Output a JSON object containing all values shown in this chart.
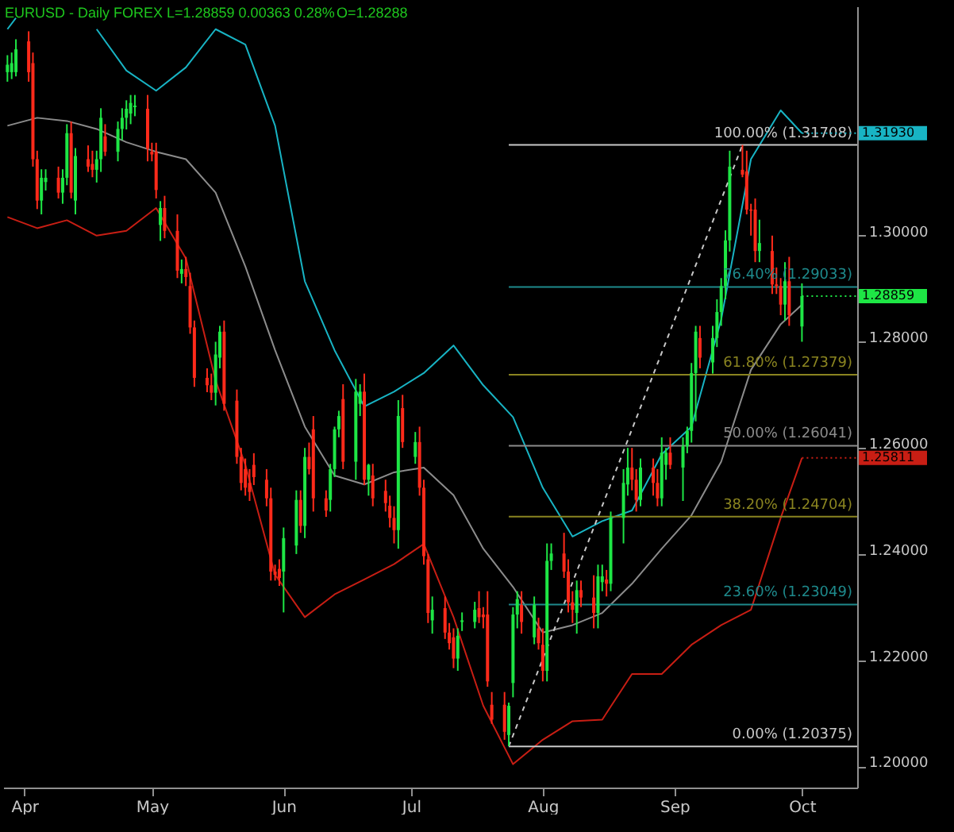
{
  "chart_data": {
    "type": "candlestick",
    "title": "EURUSD - Daily FOREX L=1.28859 0.00363 0.28%",
    "subtitle": "O=1.28288",
    "x": [
      "--03-28",
      "--03-29",
      "--03-30",
      "--04-02",
      "--04-03",
      "--04-04",
      "--04-05",
      "--04-06",
      "--04-09",
      "--04-10",
      "--04-11",
      "--04-12",
      "--04-13",
      "--04-16",
      "--04-17",
      "--04-18",
      "--04-19",
      "--04-20",
      "--04-23",
      "--04-24",
      "--04-25",
      "--04-26",
      "--04-27",
      "--04-30",
      "--05-01",
      "--05-02",
      "--05-03",
      "--05-04",
      "--05-07",
      "--05-08",
      "--05-09",
      "--05-10",
      "--05-11",
      "--05-14",
      "--05-15",
      "--05-16",
      "--05-17",
      "--05-18",
      "--05-21",
      "--05-22",
      "--05-23",
      "--05-24",
      "--05-25",
      "--05-28",
      "--05-29",
      "--05-30",
      "--05-31",
      "--06-01",
      "--06-04",
      "--06-05",
      "--06-06",
      "--06-07",
      "--06-08",
      "--06-11",
      "--06-12",
      "--06-13",
      "--06-14",
      "--06-15",
      "--06-18",
      "--06-19",
      "--06-20",
      "--06-21",
      "--06-22",
      "--06-25",
      "--06-26",
      "--06-27",
      "--06-28",
      "--06-29",
      "--07-02",
      "--07-03",
      "--07-04",
      "--07-05",
      "--07-06",
      "--07-09",
      "--07-10",
      "--07-11",
      "--07-12",
      "--07-13",
      "--07-16",
      "--07-17",
      "--07-18",
      "--07-19",
      "--07-20",
      "--07-23",
      "--07-24",
      "--07-25",
      "--07-26",
      "--07-27",
      "--07-30",
      "--07-31",
      "--08-01",
      "--08-02",
      "--08-03",
      "--08-06",
      "--08-07",
      "--08-08",
      "--08-09",
      "--08-10",
      "--08-13",
      "--08-14",
      "--08-15",
      "--08-16",
      "--08-17",
      "--08-20",
      "--08-21",
      "--08-22",
      "--08-23",
      "--08-24",
      "--08-27",
      "--08-28",
      "--08-29",
      "--08-30",
      "--08-31",
      "--09-03",
      "--09-04",
      "--09-05",
      "--09-06",
      "--09-07",
      "--09-10",
      "--09-11",
      "--09-12",
      "--09-13",
      "--09-14",
      "--09-17",
      "--09-18",
      "--09-19",
      "--09-20",
      "--09-21",
      "--09-24",
      "--09-25",
      "--09-26",
      "--09-27",
      "--09-28",
      "--10-01"
    ],
    "ohlc": [
      [
        1.3308,
        1.334,
        1.329,
        1.3322
      ],
      [
        1.3308,
        1.3345,
        1.3295,
        1.3325
      ],
      [
        1.3308,
        1.337,
        1.33,
        1.3351
      ],
      [
        1.3366,
        1.3385,
        1.329,
        1.3308
      ],
      [
        1.3325,
        1.3345,
        1.313,
        1.3144
      ],
      [
        1.3144,
        1.316,
        1.305,
        1.3066
      ],
      [
        1.3066,
        1.3125,
        1.304,
        1.3109
      ],
      [
        1.3101,
        1.3125,
        1.3085,
        1.3109
      ],
      [
        1.3109,
        1.313,
        1.307,
        1.3081
      ],
      [
        1.3081,
        1.3125,
        1.306,
        1.3109
      ],
      [
        1.3109,
        1.321,
        1.3095,
        1.3193
      ],
      [
        1.3193,
        1.3215,
        1.307,
        1.3081
      ],
      [
        1.3066,
        1.3165,
        1.304,
        1.315
      ],
      [
        1.3144,
        1.317,
        1.312,
        1.313
      ],
      [
        1.3135,
        1.316,
        1.311,
        1.3124
      ],
      [
        1.3124,
        1.316,
        1.31,
        1.3144
      ],
      [
        1.3144,
        1.324,
        1.312,
        1.3222
      ],
      [
        1.3187,
        1.321,
        1.315,
        1.3158
      ],
      [
        1.3158,
        1.3215,
        1.314,
        1.3201
      ],
      [
        1.3201,
        1.324,
        1.318,
        1.3222
      ],
      [
        1.3222,
        1.3255,
        1.32,
        1.3239
      ],
      [
        1.323,
        1.3265,
        1.321,
        1.325
      ],
      [
        1.3242,
        1.3265,
        1.3225,
        1.3245
      ],
      [
        1.3239,
        1.3265,
        1.314,
        1.3164
      ],
      [
        1.3158,
        1.3175,
        1.314,
        1.3153
      ],
      [
        1.3158,
        1.3175,
        1.307,
        1.3086
      ],
      [
        1.302,
        1.3065,
        1.299,
        1.3052
      ],
      [
        1.3052,
        1.3075,
        1.2995,
        1.3009
      ],
      [
        1.3009,
        1.304,
        1.292,
        1.2934
      ],
      [
        1.2928,
        1.2955,
        1.291,
        1.2937
      ],
      [
        1.2937,
        1.296,
        1.2905,
        1.2922
      ],
      [
        1.2905,
        1.293,
        1.2815,
        1.2827
      ],
      [
        1.2827,
        1.284,
        1.2715,
        1.2732
      ],
      [
        1.2732,
        1.275,
        1.2705,
        1.2718
      ],
      [
        1.2718,
        1.274,
        1.269,
        1.2704
      ],
      [
        1.2704,
        1.28,
        1.268,
        1.2776
      ],
      [
        1.277,
        1.283,
        1.275,
        1.2819
      ],
      [
        1.2819,
        1.284,
        1.267,
        1.2683
      ],
      [
        1.2689,
        1.271,
        1.257,
        1.2583
      ],
      [
        1.2583,
        1.26,
        1.252,
        1.2534
      ],
      [
        1.256,
        1.258,
        1.251,
        1.2525
      ],
      [
        1.2534,
        1.256,
        1.25,
        1.2517
      ],
      [
        1.2568,
        1.259,
        1.253,
        1.2545
      ],
      [
        1.254,
        1.256,
        1.249,
        1.2505
      ],
      [
        1.2505,
        1.2525,
        1.235,
        1.2367
      ],
      [
        1.2367,
        1.238,
        1.235,
        1.2361
      ],
      [
        1.2372,
        1.239,
        1.234,
        1.2355
      ],
      [
        1.2367,
        1.245,
        1.229,
        1.243
      ],
      [
        1.2416,
        1.252,
        1.24,
        1.2502
      ],
      [
        1.2502,
        1.252,
        1.244,
        1.2453
      ],
      [
        1.2453,
        1.26,
        1.243,
        1.2583
      ],
      [
        1.2583,
        1.261,
        1.255,
        1.256
      ],
      [
        1.2635,
        1.266,
        1.248,
        1.2505
      ],
      [
        1.2505,
        1.252,
        1.247,
        1.2482
      ],
      [
        1.2502,
        1.257,
        1.248,
        1.256
      ],
      [
        1.256,
        1.264,
        1.2545,
        1.2635
      ],
      [
        1.2635,
        1.267,
        1.262,
        1.266
      ],
      [
        1.2692,
        1.272,
        1.256,
        1.2574
      ],
      [
        1.2574,
        1.273,
        1.254,
        1.2706
      ],
      [
        1.2683,
        1.272,
        1.266,
        1.2706
      ],
      [
        1.2706,
        1.274,
        1.253,
        1.254
      ],
      [
        1.254,
        1.257,
        1.251,
        1.2568
      ],
      [
        1.2548,
        1.257,
        1.249,
        1.2505
      ],
      [
        1.2519,
        1.254,
        1.248,
        1.2496
      ],
      [
        1.2491,
        1.251,
        1.245,
        1.2468
      ],
      [
        1.2468,
        1.249,
        1.242,
        1.2445
      ],
      [
        1.2445,
        1.269,
        1.241,
        1.266
      ],
      [
        1.2675,
        1.27,
        1.26,
        1.2611
      ],
      [
        1.2583,
        1.263,
        1.257,
        1.2611
      ],
      [
        1.2611,
        1.264,
        1.251,
        1.2525
      ],
      [
        1.2525,
        1.254,
        1.238,
        1.2396
      ],
      [
        1.239,
        1.24,
        1.227,
        1.2289
      ],
      [
        1.2275,
        1.232,
        1.225,
        1.2295
      ],
      [
        1.2298,
        1.232,
        1.224,
        1.2252
      ],
      [
        1.2252,
        1.227,
        1.222,
        1.2232
      ],
      [
        1.2243,
        1.226,
        1.2185,
        1.2203
      ],
      [
        1.2203,
        1.226,
        1.218,
        1.2246
      ],
      [
        1.2272,
        1.229,
        1.2255,
        1.2275
      ],
      [
        1.2272,
        1.231,
        1.226,
        1.2295
      ],
      [
        1.2298,
        1.233,
        1.227,
        1.2281
      ],
      [
        1.2286,
        1.23,
        1.226,
        1.2281
      ],
      [
        1.2286,
        1.233,
        1.215,
        1.216
      ],
      [
        1.2116,
        1.214,
        1.208,
        1.2088
      ],
      [
        1.2116,
        1.214,
        1.205,
        1.2065
      ],
      [
        1.2059,
        1.212,
        1.2038,
        1.2114
      ],
      [
        1.2157,
        1.23,
        1.213,
        1.2286
      ],
      [
        1.2286,
        1.233,
        1.226,
        1.2315
      ],
      [
        1.2304,
        1.233,
        1.225,
        1.2272
      ],
      [
        1.2243,
        1.232,
        1.223,
        1.2304
      ],
      [
        1.226,
        1.228,
        1.222,
        1.2232
      ],
      [
        1.2229,
        1.226,
        1.216,
        1.218
      ],
      [
        1.218,
        1.242,
        1.216,
        1.2387
      ],
      [
        1.2387,
        1.242,
        1.237,
        1.2401
      ],
      [
        1.2401,
        1.244,
        1.2355,
        1.2367
      ],
      [
        1.2367,
        1.239,
        1.229,
        1.2309
      ],
      [
        1.2309,
        1.233,
        1.227,
        1.2295
      ],
      [
        1.2289,
        1.235,
        1.225,
        1.2332
      ],
      [
        1.2332,
        1.235,
        1.23,
        1.2318
      ],
      [
        1.2318,
        1.236,
        1.226,
        1.2289
      ],
      [
        1.2289,
        1.238,
        1.226,
        1.2358
      ],
      [
        1.2347,
        1.238,
        1.233,
        1.2358
      ],
      [
        1.2352,
        1.237,
        1.232,
        1.2344
      ],
      [
        1.2344,
        1.248,
        1.233,
        1.2468
      ],
      [
        1.2468,
        1.256,
        1.242,
        1.2534
      ],
      [
        1.2531,
        1.26,
        1.251,
        1.2563
      ],
      [
        1.2563,
        1.26,
        1.252,
        1.254
      ],
      [
        1.254,
        1.256,
        1.248,
        1.2502
      ],
      [
        1.2502,
        1.258,
        1.249,
        1.2563
      ],
      [
        1.2563,
        1.258,
        1.251,
        1.2534
      ],
      [
        1.2534,
        1.256,
        1.249,
        1.2505
      ],
      [
        1.2505,
        1.262,
        1.249,
        1.2591
      ],
      [
        1.2568,
        1.26,
        1.254,
        1.2591
      ],
      [
        1.2591,
        1.262,
        1.256,
        1.2568
      ],
      [
        1.2563,
        1.262,
        1.25,
        1.2603
      ],
      [
        1.2603,
        1.264,
        1.259,
        1.2632
      ],
      [
        1.2632,
        1.276,
        1.261,
        1.2741
      ],
      [
        1.2741,
        1.283,
        1.265,
        1.2819
      ],
      [
        1.2807,
        1.283,
        1.275,
        1.277
      ],
      [
        1.2761,
        1.283,
        1.274,
        1.2807
      ],
      [
        1.2807,
        1.288,
        1.279,
        1.2856
      ],
      [
        1.2856,
        1.292,
        1.283,
        1.2905
      ],
      [
        1.2905,
        1.301,
        1.288,
        1.2991
      ],
      [
        1.2991,
        1.316,
        1.297,
        1.313
      ],
      [
        1.3124,
        1.31708,
        1.311,
        1.3115
      ],
      [
        1.3121,
        1.316,
        1.304,
        1.3049
      ],
      [
        1.3049,
        1.306,
        1.3,
        1.3047
      ],
      [
        1.3049,
        1.307,
        1.295,
        1.2971
      ],
      [
        1.2971,
        1.303,
        1.295,
        1.2986
      ],
      [
        1.2971,
        1.3,
        1.289,
        1.2908
      ],
      [
        1.2908,
        1.294,
        1.289,
        1.2905
      ],
      [
        1.2905,
        1.292,
        1.285,
        1.287
      ],
      [
        1.287,
        1.295,
        1.284,
        1.2914
      ],
      [
        1.2914,
        1.296,
        1.283,
        1.285
      ],
      [
        1.28288,
        1.291,
        1.28,
        1.28859
      ]
    ],
    "colors": [
      "#1ee645",
      "#1ee645",
      "#1ee645",
      "#ff2a1a",
      "#ff2a1a",
      "#ff2a1a",
      "#1ee645",
      "#1ee645",
      "#ff2a1a",
      "#1ee645",
      "#1ee645",
      "#ff2a1a",
      "#1ee645",
      "#ff2a1a",
      "#ff2a1a",
      "#1ee645",
      "#1ee645",
      "#ff2a1a",
      "#1ee645",
      "#1ee645",
      "#1ee645",
      "#1ee645",
      "#1ee645",
      "#ff2a1a",
      "#ff2a1a",
      "#ff2a1a",
      "#1ee645",
      "#ff2a1a",
      "#ff2a1a",
      "#1ee645",
      "#ff2a1a",
      "#ff2a1a",
      "#ff2a1a",
      "#ff2a1a",
      "#ff2a1a",
      "#1ee645",
      "#1ee645",
      "#ff2a1a",
      "#ff2a1a",
      "#ff2a1a",
      "#ff2a1a",
      "#ff2a1a",
      "#ff2a1a",
      "#ff2a1a",
      "#ff2a1a",
      "#ff2a1a",
      "#ff2a1a",
      "#1ee645",
      "#1ee645",
      "#ff2a1a",
      "#1ee645",
      "#ff2a1a",
      "#ff2a1a",
      "#ff2a1a",
      "#1ee645",
      "#1ee645",
      "#1ee645",
      "#ff2a1a",
      "#1ee645",
      "#1ee645",
      "#ff2a1a",
      "#1ee645",
      "#ff2a1a",
      "#ff2a1a",
      "#ff2a1a",
      "#ff2a1a",
      "#1ee645",
      "#ff2a1a",
      "#1ee645",
      "#ff2a1a",
      "#ff2a1a",
      "#ff2a1a",
      "#1ee645",
      "#ff2a1a",
      "#ff2a1a",
      "#ff2a1a",
      "#1ee645",
      "#1ee645",
      "#1ee645",
      "#ff2a1a",
      "#ff2a1a",
      "#ff2a1a",
      "#ff2a1a",
      "#ff2a1a",
      "#1ee645",
      "#1ee645",
      "#1ee645",
      "#ff2a1a",
      "#1ee645",
      "#ff2a1a",
      "#ff2a1a",
      "#1ee645",
      "#1ee645",
      "#ff2a1a",
      "#ff2a1a",
      "#ff2a1a",
      "#1ee645",
      "#ff2a1a",
      "#ff2a1a",
      "#1ee645",
      "#1ee645",
      "#ff2a1a",
      "#1ee645",
      "#1ee645",
      "#1ee645",
      "#ff2a1a",
      "#ff2a1a",
      "#1ee645",
      "#ff2a1a",
      "#ff2a1a",
      "#1ee645",
      "#1ee645",
      "#ff2a1a",
      "#1ee645",
      "#1ee645",
      "#1ee645",
      "#1ee645",
      "#ff2a1a",
      "#1ee645",
      "#1ee645",
      "#1ee645",
      "#1ee645",
      "#1ee645",
      "#ff2a1a",
      "#ff2a1a",
      "#ff2a1a",
      "#ff2a1a",
      "#1ee645",
      "#ff2a1a",
      "#ff2a1a",
      "#ff2a1a",
      "#1ee645",
      "#ff2a1a",
      "#1ee645"
    ],
    "series": [
      {
        "type": "line",
        "color": "#18b4c4",
        "x": [
          "--03-28",
          "--03-30",
          "--04-04",
          "--04-11",
          "--04-18",
          "--04-25",
          "--05-02",
          "--05-09",
          "--05-16",
          "--05-23",
          "--05-30",
          "--06-06",
          "--06-13",
          "--06-20",
          "--06-27",
          "--07-04",
          "--07-11",
          "--07-18",
          "--07-25",
          "--08-01",
          "--08-08",
          "--08-15",
          "--08-22",
          "--08-29",
          "--09-05",
          "--09-12",
          "--09-19",
          "--09-26",
          "--10-01"
        ],
        "values": [
          1.3389,
          1.341,
          null,
          null,
          1.3389,
          1.3311,
          1.3273,
          1.3317,
          1.3389,
          1.336,
          1.3207,
          1.2914,
          1.2784,
          1.2678,
          1.2706,
          1.2741,
          1.2793,
          1.2718,
          1.2658,
          1.2525,
          1.2433,
          1.2462,
          1.2482,
          1.2588,
          1.264,
          1.2842,
          1.3144,
          1.3236,
          1.3193
        ],
        "value_labels": [
          null,
          null,
          null,
          null,
          null,
          null,
          null,
          null,
          null,
          null,
          null,
          null,
          null,
          null,
          null,
          null,
          null,
          null,
          null,
          null,
          null,
          null,
          null,
          null,
          null,
          null,
          null,
          null,
          "1.31930"
        ]
      },
      {
        "type": "line",
        "color": "#8c8c8c",
        "x": [
          "--03-28",
          "--04-04",
          "--04-11",
          "--04-18",
          "--04-25",
          "--05-02",
          "--05-09",
          "--05-16",
          "--05-23",
          "--05-30",
          "--06-06",
          "--06-13",
          "--06-20",
          "--06-27",
          "--07-04",
          "--07-11",
          "--07-18",
          "--07-25",
          "--08-01",
          "--08-08",
          "--08-15",
          "--08-22",
          "--08-29",
          "--09-05",
          "--09-12",
          "--09-19",
          "--09-26",
          "--10-01"
        ],
        "values": [
          1.3207,
          1.3222,
          1.3216,
          1.3201,
          1.3176,
          1.3158,
          1.3144,
          1.3081,
          1.2942,
          1.2784,
          1.264,
          1.2548,
          1.2531,
          1.2554,
          1.2563,
          1.2511,
          1.241,
          1.2338,
          1.2252,
          1.2266,
          1.2289,
          1.2344,
          1.241,
          1.2473,
          1.2574,
          1.2747,
          1.2833,
          1.287
        ]
      },
      {
        "type": "line",
        "color": "#c81e14",
        "x": [
          "--03-28",
          "--04-04",
          "--04-11",
          "--04-18",
          "--04-25",
          "--05-02",
          "--05-09",
          "--05-16",
          "--05-23",
          "--05-30",
          "--06-06",
          "--06-13",
          "--06-20",
          "--06-27",
          "--07-04",
          "--07-11",
          "--07-18",
          "--07-25",
          "--08-01",
          "--08-08",
          "--08-15",
          "--08-22",
          "--08-29",
          "--09-05",
          "--09-12",
          "--09-19",
          "--09-26",
          "--10-01"
        ],
        "values": [
          1.3035,
          1.3014,
          1.3029,
          1.3,
          1.3009,
          1.3052,
          1.2957,
          1.2727,
          1.2568,
          1.2361,
          1.2281,
          1.2324,
          1.2352,
          1.2381,
          1.2419,
          1.2281,
          1.2114,
          1.2004,
          1.205,
          1.2085,
          1.2088,
          1.2174,
          1.2174,
          1.2229,
          1.2266,
          1.2295,
          1.2468,
          1.25811
        ],
        "value_labels": [
          null,
          null,
          null,
          null,
          null,
          null,
          null,
          null,
          null,
          null,
          null,
          null,
          null,
          null,
          null,
          null,
          null,
          null,
          null,
          null,
          null,
          null,
          null,
          null,
          null,
          null,
          null,
          "1.25811"
        ]
      },
      {
        "type": "line",
        "color": "#c8c8c8",
        "line_style": "dashed",
        "x": [
          "--07-24",
          "--09-17"
        ],
        "values": [
          1.20375,
          1.31708
        ]
      }
    ],
    "ref_lines": [
      {
        "axis": "y",
        "value": 1.31708,
        "label": "100.00% (1.31708)",
        "color": "#c8c8c8"
      },
      {
        "axis": "y",
        "value": 1.29033,
        "label": "76.40% (1.29033)",
        "color": "#1e8a8c"
      },
      {
        "axis": "y",
        "value": 1.27379,
        "label": "61.80% (1.27379)",
        "color": "#8a8420"
      },
      {
        "axis": "y",
        "value": 1.26041,
        "label": "50.00% (1.26041)",
        "color": "#8c8c8c"
      },
      {
        "axis": "y",
        "value": 1.24704,
        "label": "38.20% (1.24704)",
        "color": "#8a8420"
      },
      {
        "axis": "y",
        "value": 1.23049,
        "label": "23.60% (1.23049)",
        "color": "#1e8a8c"
      },
      {
        "axis": "y",
        "value": 1.20375,
        "label": "0.00% (1.20375)",
        "color": "#c8c8c8"
      }
    ],
    "annotations": [
      "1.28859"
    ],
    "xlim": [
      "--03-27",
      "--10-14"
    ],
    "xticks": [
      {
        "value": "--04-01",
        "label": "Apr"
      },
      {
        "value": "--05-01",
        "label": "May"
      },
      {
        "value": "--06-01",
        "label": "Jun"
      },
      {
        "value": "--07-01",
        "label": "Jul"
      },
      {
        "value": "--08-01",
        "label": "Aug"
      },
      {
        "value": "--09-01",
        "label": "Sep"
      },
      {
        "value": "--10-01",
        "label": "Oct"
      }
    ],
    "ylim": [
      1.196,
      1.3432
    ],
    "yticks": [
      {
        "value": 1.2,
        "label": "1.20000"
      },
      {
        "value": 1.22,
        "label": "1.22000"
      },
      {
        "value": 1.24,
        "label": "1.24000"
      },
      {
        "value": 1.26,
        "label": "1.26000"
      },
      {
        "value": 1.28,
        "label": "1.28000"
      },
      {
        "value": 1.3,
        "label": "1.30000"
      }
    ],
    "grid": false
  }
}
